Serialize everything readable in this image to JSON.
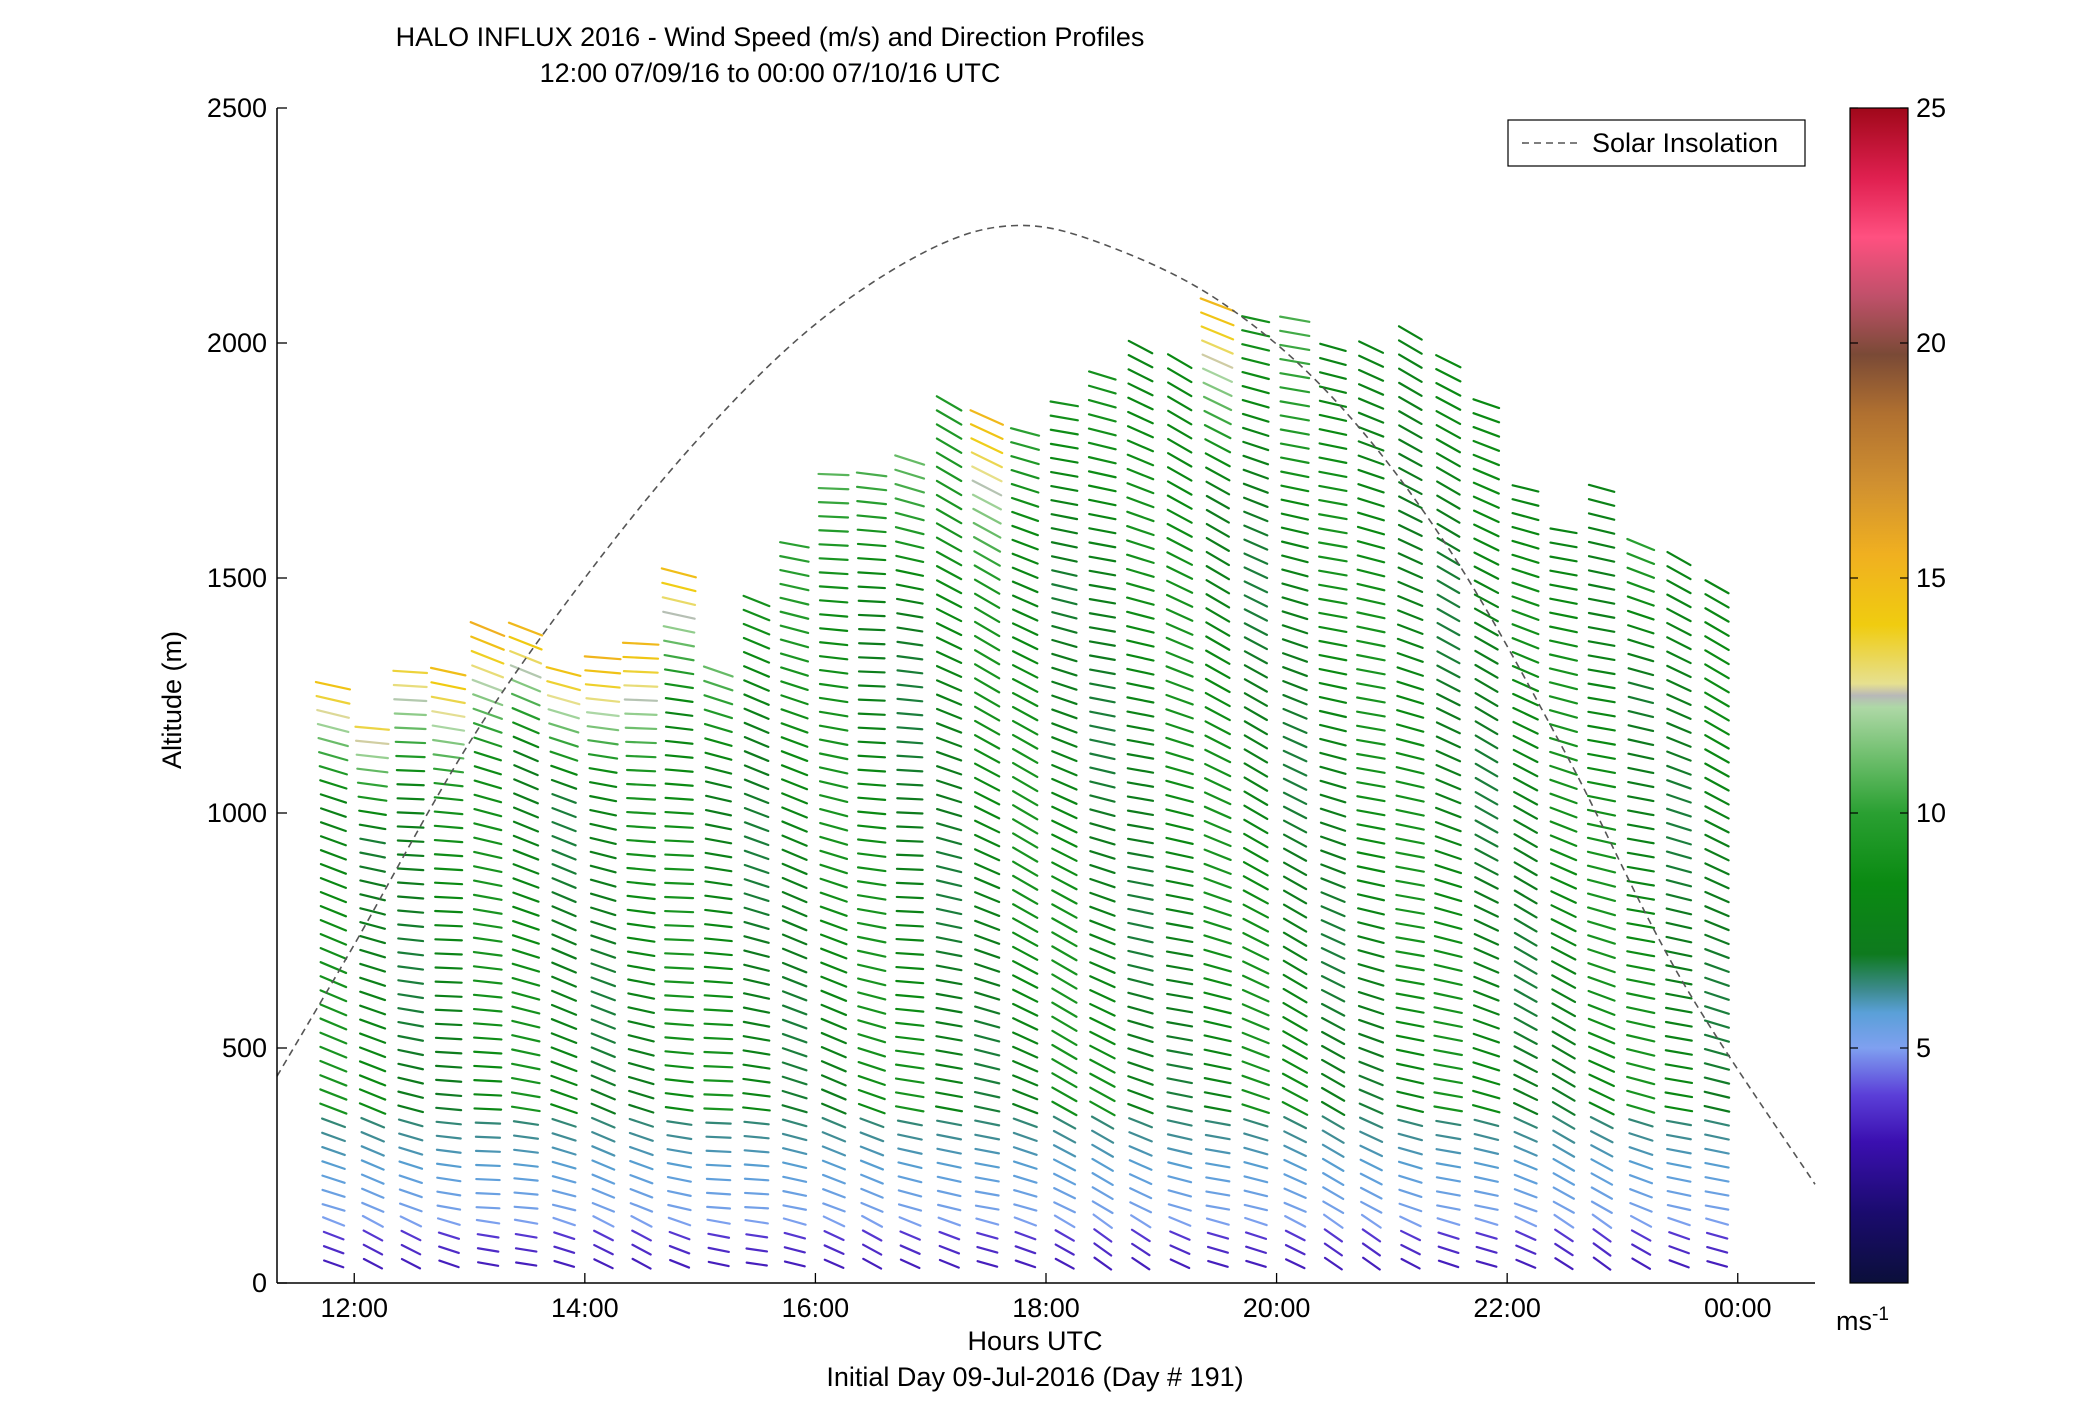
{
  "chart_data": {
    "type": "scatter",
    "title": "HALO INFLUX 2016 - Wind Speed (m/s) and Direction Profiles",
    "subtitle": "12:00 07/09/16 to 00:00 07/10/16  UTC",
    "xlabel": "Hours UTC",
    "footer": "Initial Day 09-Jul-2016 (Day # 191)",
    "ylabel": "Altitude (m)",
    "x_ticks": [
      "12:00",
      "14:00",
      "16:00",
      "18:00",
      "20:00",
      "22:00",
      "00:00"
    ],
    "x_tick_hours": [
      12,
      14,
      16,
      18,
      20,
      22,
      24
    ],
    "xlim_hours": [
      11.33,
      24.67
    ],
    "y_ticks": [
      0,
      500,
      1000,
      1500,
      2000,
      2500
    ],
    "ylim": [
      0,
      2500
    ],
    "legend": {
      "label": "Solar Insolation",
      "placement": "top-right"
    },
    "colorbar": {
      "min": 0,
      "max": 25,
      "ticks": [
        5,
        10,
        15,
        20,
        25
      ],
      "unit_label": "ms",
      "unit_exponent": "-1"
    },
    "solar_insolation": {
      "peak_hour": 17.75,
      "peak_altitude": 2250,
      "x": [
        11.33,
        12.0,
        13.0,
        14.0,
        15.0,
        16.0,
        17.0,
        17.75,
        18.5,
        19.5,
        20.5,
        21.5,
        22.5,
        23.5,
        24.67
      ],
      "y": [
        440,
        720,
        1150,
        1500,
        1800,
        2040,
        2200,
        2250,
        2210,
        2090,
        1880,
        1560,
        1130,
        650,
        210
      ]
    },
    "profiles": [
      {
        "hour": 11.83,
        "top": 1270,
        "speed_top": 14.5
      },
      {
        "hour": 12.17,
        "top": 1180,
        "speed_top": 13.5
      },
      {
        "hour": 12.5,
        "top": 1320,
        "speed_top": 14.0
      },
      {
        "hour": 12.83,
        "top": 1310,
        "speed_top": 15.0
      },
      {
        "hour": 13.17,
        "top": 1390,
        "speed_top": 15.5
      },
      {
        "hour": 13.5,
        "top": 1390,
        "speed_top": 15.0
      },
      {
        "hour": 13.83,
        "top": 1300,
        "speed_top": 14.5
      },
      {
        "hour": 14.17,
        "top": 1340,
        "speed_top": 15.5
      },
      {
        "hour": 14.5,
        "top": 1360,
        "speed_top": 15.0
      },
      {
        "hour": 14.83,
        "top": 1520,
        "speed_top": 15.0
      },
      {
        "hour": 15.17,
        "top": 1300,
        "speed_top": 11.0
      },
      {
        "hour": 15.5,
        "top": 1450,
        "speed_top": 9.0
      },
      {
        "hour": 15.83,
        "top": 1580,
        "speed_top": 10.0
      },
      {
        "hour": 16.17,
        "top": 1740,
        "speed_top": 11.0
      },
      {
        "hour": 16.5,
        "top": 1720,
        "speed_top": 10.5
      },
      {
        "hour": 16.83,
        "top": 1750,
        "speed_top": 11.0
      },
      {
        "hour": 17.17,
        "top": 1870,
        "speed_top": 9.5
      },
      {
        "hour": 17.5,
        "top": 1840,
        "speed_top": 15.0
      },
      {
        "hour": 17.83,
        "top": 1810,
        "speed_top": 10.0
      },
      {
        "hour": 18.17,
        "top": 1870,
        "speed_top": 9.0
      },
      {
        "hour": 18.5,
        "top": 1930,
        "speed_top": 9.0
      },
      {
        "hour": 18.83,
        "top": 2000,
        "speed_top": 8.0
      },
      {
        "hour": 19.17,
        "top": 1960,
        "speed_top": 8.5
      },
      {
        "hour": 19.5,
        "top": 2080,
        "speed_top": 15.0
      },
      {
        "hour": 19.83,
        "top": 2070,
        "speed_top": 9.0
      },
      {
        "hour": 20.17,
        "top": 2050,
        "speed_top": 10.5
      },
      {
        "hour": 20.5,
        "top": 2000,
        "speed_top": 8.0
      },
      {
        "hour": 20.83,
        "top": 2000,
        "speed_top": 8.0
      },
      {
        "hour": 21.17,
        "top": 2040,
        "speed_top": 8.0
      },
      {
        "hour": 21.5,
        "top": 1960,
        "speed_top": 8.5
      },
      {
        "hour": 21.83,
        "top": 1880,
        "speed_top": 8.5
      },
      {
        "hour": 22.17,
        "top": 1700,
        "speed_top": 8.0
      },
      {
        "hour": 22.5,
        "top": 1620,
        "speed_top": 8.0
      },
      {
        "hour": 22.83,
        "top": 1710,
        "speed_top": 8.0
      },
      {
        "hour": 23.17,
        "top": 1580,
        "speed_top": 10.0
      },
      {
        "hour": 23.5,
        "top": 1540,
        "speed_top": 8.0
      },
      {
        "hour": 23.83,
        "top": 1500,
        "speed_top": 8.0
      }
    ],
    "description_values": {
      "barb_spacing_m": 30,
      "surface_speed": 3.0,
      "low_level_speed": 5.0,
      "mid_level_speed": 8.0
    }
  }
}
